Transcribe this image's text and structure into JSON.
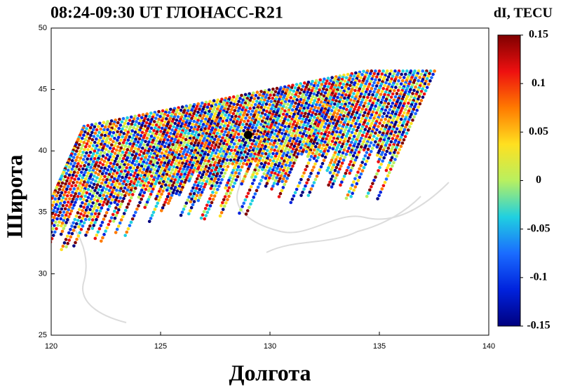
{
  "chart_data": {
    "type": "scatter",
    "title": "08:24-09:30 UT   ГЛОНАСС-R21",
    "colorbar_label": "dI, TECU",
    "x_label": "Долгота",
    "y_label": "Широта",
    "xlim": [
      120,
      140
    ],
    "ylim": [
      25,
      50
    ],
    "xticks": [
      120,
      125,
      130,
      135,
      140
    ],
    "yticks": [
      25,
      30,
      35,
      40,
      45,
      50
    ],
    "clim": [
      -0.15,
      0.15
    ],
    "cticks": [
      -0.15,
      -0.1,
      -0.05,
      0,
      0.05,
      0.1,
      0.15
    ],
    "colormap": [
      "#00007f",
      "#0022dd",
      "#1a6cff",
      "#20d0e0",
      "#b8f060",
      "#ffe020",
      "#ff7a00",
      "#ee1010",
      "#7f0000"
    ],
    "series": [
      {
        "x": [
          129
        ],
        "values": [
          41.3
        ],
        "color": "#000000"
      }
    ]
  }
}
